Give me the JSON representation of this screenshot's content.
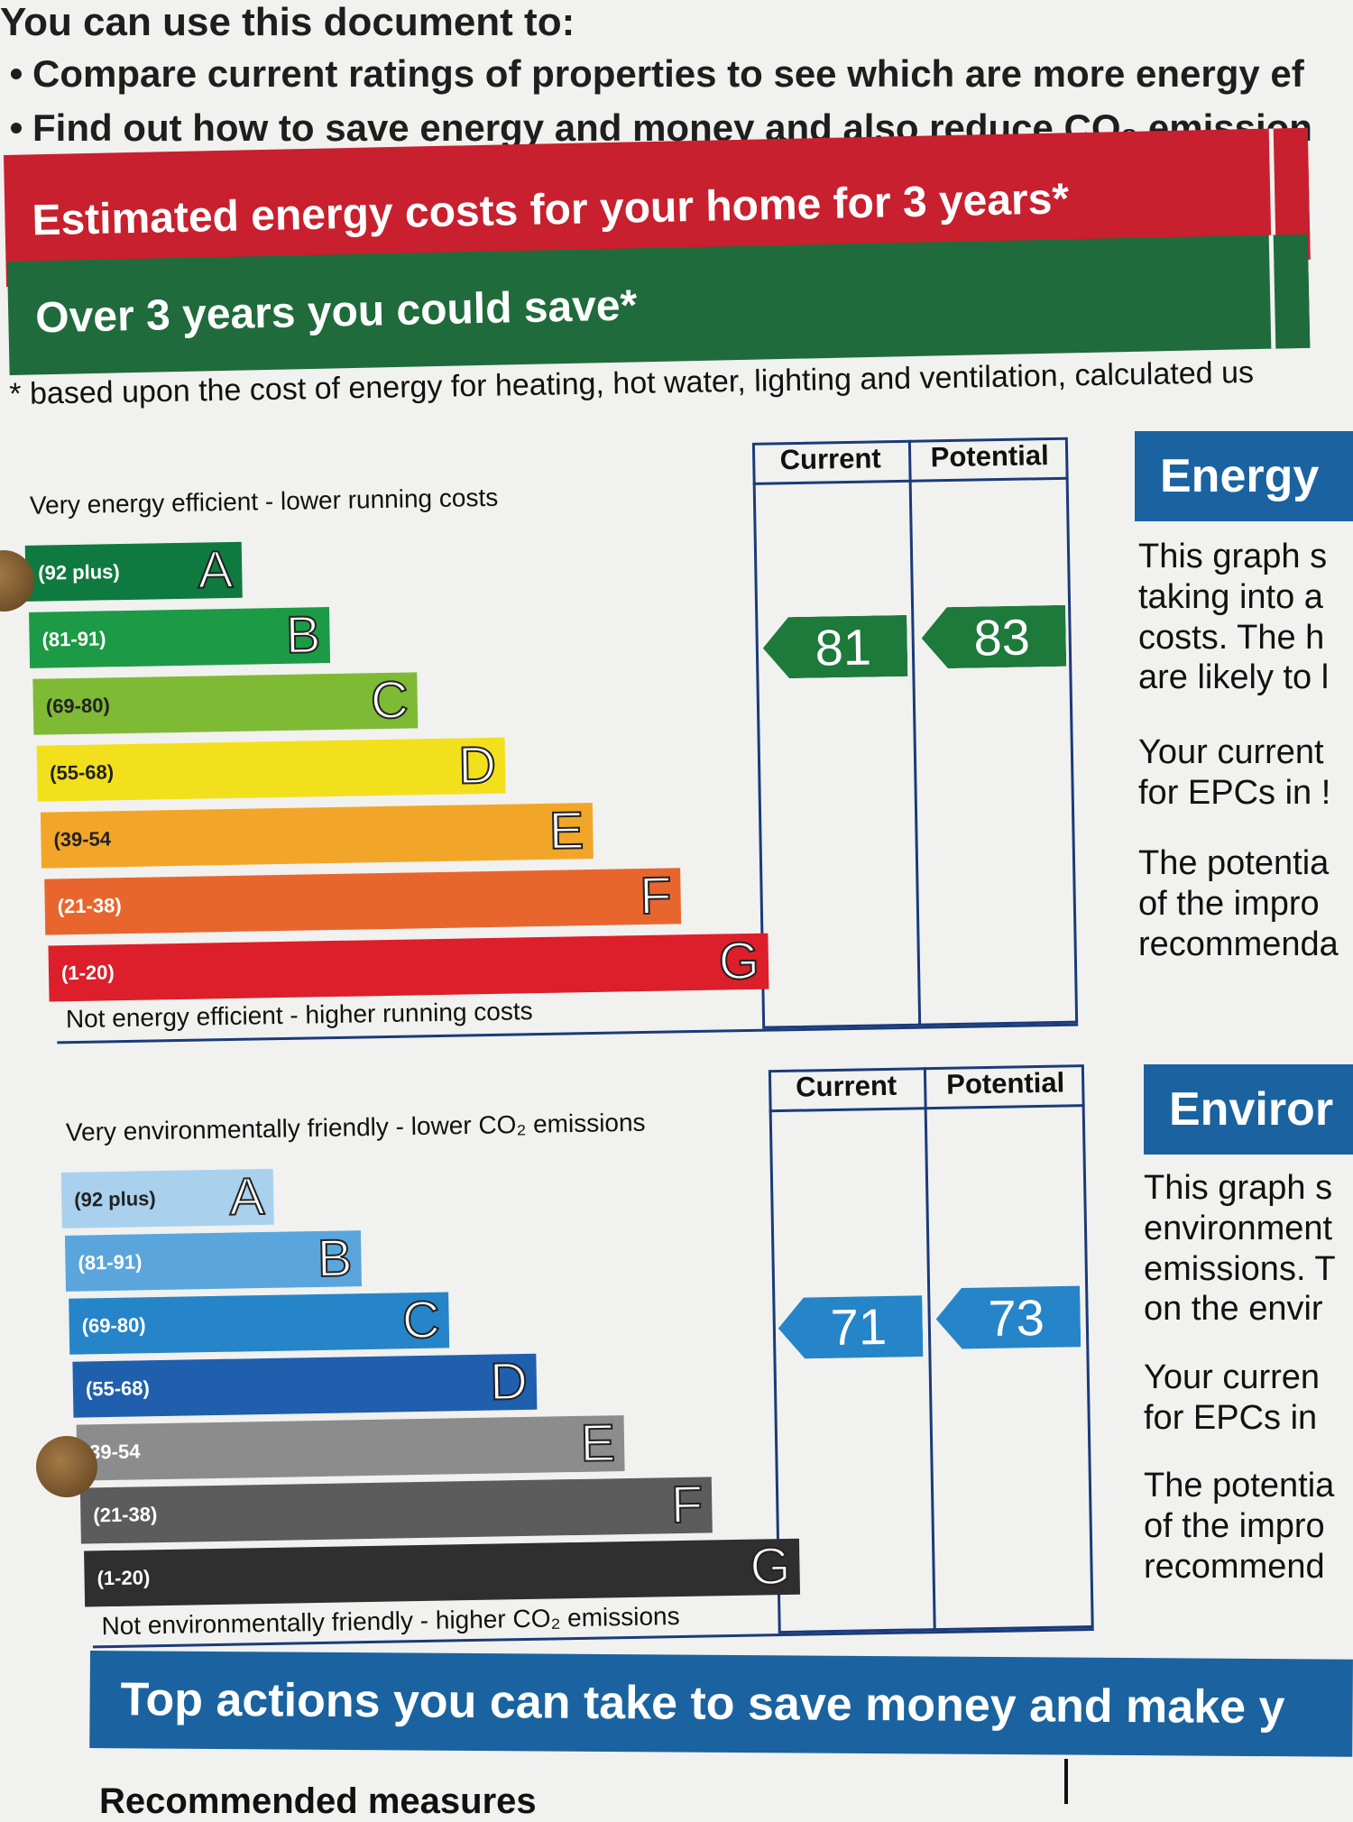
{
  "intro": {
    "heading": "You can use this document to:",
    "bullets": [
      "Compare current ratings of properties to see which are more energy ef",
      "Find out how to save energy and money and also reduce CO₂ emission"
    ]
  },
  "cost_band": {
    "label": "Estimated energy costs for your home for 3 years*"
  },
  "save_band": {
    "label": "Over 3 years you could save*"
  },
  "footnote": "* based upon the cost of energy for heating, hot water, lighting and ventilation, calculated us",
  "energy_graph": {
    "col_current": "Current",
    "col_potential": "Potential",
    "top_caption": "Very energy efficient - lower running costs",
    "bottom_caption": "Not energy efficient - higher running costs",
    "bands": [
      {
        "range": "(92 plus)",
        "letter": "A",
        "color": "#0f7a3f"
      },
      {
        "range": "(81-91)",
        "letter": "B",
        "color": "#1d9a45"
      },
      {
        "range": "(69-80)",
        "letter": "C",
        "color": "#7fba35"
      },
      {
        "range": "(55-68)",
        "letter": "D",
        "color": "#f3e01c"
      },
      {
        "range": "(39-54",
        "letter": "E",
        "color": "#f2a629"
      },
      {
        "range": "(21-38)",
        "letter": "F",
        "color": "#e8662e"
      },
      {
        "range": "(1-20)",
        "letter": "G",
        "color": "#dc1f2a"
      }
    ],
    "current": {
      "value": "81",
      "rating": 81,
      "color": "#1d7a3a"
    },
    "potential": {
      "value": "83",
      "rating": 83,
      "color": "#1d7a3a"
    }
  },
  "env_graph": {
    "col_current": "Current",
    "col_potential": "Potential",
    "top_caption": "Very environmentally friendly - lower CO₂ emissions",
    "bottom_caption": "Not environmentally friendly - higher CO₂ emissions",
    "bands": [
      {
        "range": "(92 plus)",
        "letter": "A",
        "color": "#a9d1ee"
      },
      {
        "range": "(81-91)",
        "letter": "B",
        "color": "#5aa6dc"
      },
      {
        "range": "(69-80)",
        "letter": "C",
        "color": "#2585c8"
      },
      {
        "range": "(55-68)",
        "letter": "D",
        "color": "#1f5fae"
      },
      {
        "range": "39-54",
        "letter": "E",
        "color": "#8c8c8c"
      },
      {
        "range": "(21-38)",
        "letter": "F",
        "color": "#5c5c5c"
      },
      {
        "range": "(1-20)",
        "letter": "G",
        "color": "#2f2f2f"
      }
    ],
    "current": {
      "value": "71",
      "rating": 71,
      "color": "#2585c8"
    },
    "potential": {
      "value": "73",
      "rating": 73,
      "color": "#2585c8"
    }
  },
  "energy_panel": {
    "title": "Energy",
    "paragraphs": [
      "This graph s\ntaking into a\ncosts. The h\nare likely to l",
      "Your current\nfor EPCs in !",
      "The potentia\nof the impro\nrecommenda"
    ]
  },
  "env_panel": {
    "title": "Enviror",
    "paragraphs": [
      "This graph s\nenvironment\nemissions. T\non the envir",
      "Your curren\nfor EPCs in",
      "The potentia\nof the impro\nrecommend"
    ]
  },
  "top_actions": "Top actions you can take to save money and make y",
  "recommended": "Recommended measures"
}
